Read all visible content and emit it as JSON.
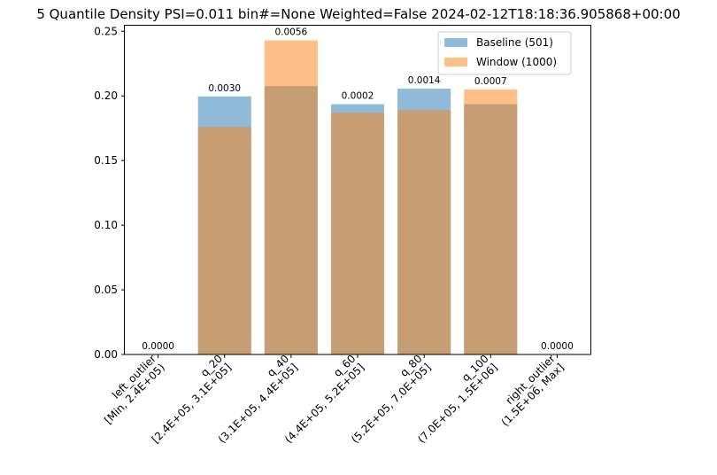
{
  "chart_data": {
    "type": "bar",
    "title": "5 Quantile Density PSI=0.011 bin#=None Weighted=False 2024-02-12T18:18:36.905868+00:00",
    "xlabel": "",
    "ylabel": "",
    "categories": [
      {
        "name": "left_outlier",
        "range": "[Min, 2.4E+05)"
      },
      {
        "name": "q_20",
        "range": "[2.4E+05, 3.1E+05]"
      },
      {
        "name": "q_40",
        "range": "(3.1E+05, 4.4E+05]"
      },
      {
        "name": "q_60",
        "range": "(4.4E+05, 5.2E+05]"
      },
      {
        "name": "q_80",
        "range": "(5.2E+05, 7.0E+05]"
      },
      {
        "name": "q_100",
        "range": "(7.0E+05, 1.5E+06]"
      },
      {
        "name": "right_outlier",
        "range": "(1.5E+06, Max]"
      }
    ],
    "series": [
      {
        "name": "Baseline (501)",
        "color": "#1f77b4",
        "opacity": 0.5,
        "values": [
          0.0,
          0.1996,
          0.2076,
          0.1936,
          0.2056,
          0.1936,
          0.0
        ]
      },
      {
        "name": "Window (1000)",
        "color": "#ff7f0e",
        "opacity": 0.5,
        "values": [
          0.0,
          0.176,
          0.243,
          0.187,
          0.189,
          0.205,
          0.0
        ]
      }
    ],
    "bar_labels": [
      "0.0000",
      "0.0030",
      "0.0056",
      "0.0002",
      "0.0014",
      "0.0007",
      "0.0000"
    ],
    "ylim": [
      0,
      0.255
    ],
    "yticks": [
      0.0,
      0.05,
      0.1,
      0.15,
      0.2,
      0.25
    ],
    "ytick_labels": [
      "0.00",
      "0.05",
      "0.10",
      "0.15",
      "0.20",
      "0.25"
    ],
    "grid": false,
    "legend_position": "top-right"
  }
}
